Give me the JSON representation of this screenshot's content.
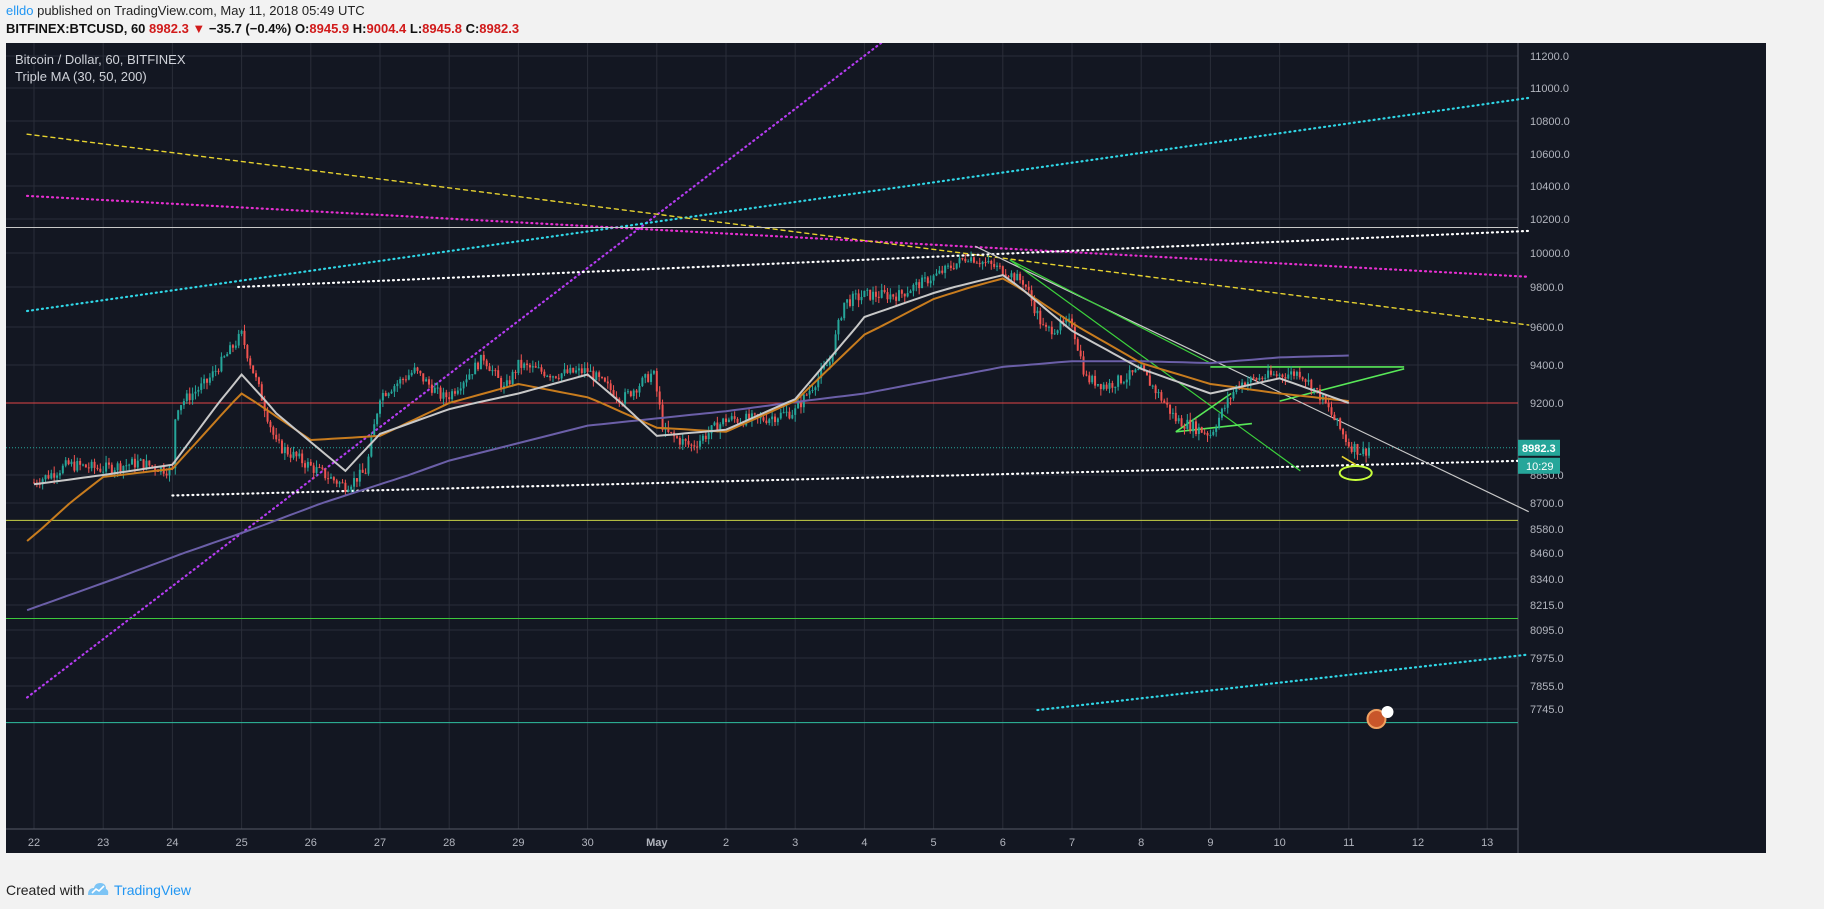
{
  "header": {
    "author": "elldo",
    "published_text": "published on TradingView.com, May 11, 2018 05:49 UTC",
    "symbol": "BITFINEX:BTCUSD, 60",
    "last": "8982.3",
    "arrow": "▼",
    "change": "−35.7 (−0.4%)",
    "o_label": "O:",
    "o_value": "8945.9",
    "h_label": "H:",
    "h_value": "9004.4",
    "l_label": "L:",
    "l_value": "8945.8",
    "c_label": "C:",
    "c_value": "8982.3"
  },
  "legend": {
    "title": "Bitcoin / Dollar, 60, BITFINEX",
    "indicator": "Triple MA (30, 50, 200)"
  },
  "footer": {
    "created_with": "Created with",
    "brand": "TradingView"
  },
  "colors": {
    "background": "#131722",
    "grid": "#2a2e39",
    "up": "#26a69a",
    "down": "#ef5350",
    "axis_text": "#b2b5be",
    "ma30": "#c8c8c8",
    "ma50": "#c87c1e",
    "ma200": "#6b5fa8"
  },
  "chart_data": {
    "type": "candlestick",
    "title": "Bitcoin / Dollar, 60, BITFINEX",
    "x_ticks": [
      "22",
      "23",
      "24",
      "25",
      "26",
      "27",
      "28",
      "29",
      "30",
      "May",
      "2",
      "3",
      "4",
      "5",
      "6",
      "7",
      "8",
      "9",
      "10",
      "11",
      "12",
      "13"
    ],
    "y_ticks": [
      "11200.0",
      "11000.0",
      "10800.0",
      "10600.0",
      "10400.0",
      "10200.0",
      "10000.0",
      "9800.0",
      "9600.0",
      "9400.0",
      "9200.0",
      "8982.3",
      "8850.0",
      "8700.0",
      "8580.0",
      "8460.0",
      "8340.0",
      "8215.0",
      "8095.0",
      "7975.0",
      "7855.0",
      "7745.0"
    ],
    "y_tick_values": [
      11200,
      11000,
      10800,
      10600,
      10400,
      10200,
      10000,
      9800,
      9600,
      9400,
      9200,
      8982.3,
      8850,
      8700,
      8580,
      8460,
      8340,
      8215,
      8095,
      7975,
      7855,
      7745
    ],
    "price_label": "8982.3",
    "countdown_label": "10:29",
    "last_price": 8982.3,
    "series_anchors": {
      "description_points_day_index_price": true,
      "close": [
        [
          0,
          8810
        ],
        [
          0.5,
          8900
        ],
        [
          1,
          8880
        ],
        [
          1.5,
          8910
        ],
        [
          2,
          8870
        ],
        [
          2.05,
          9180
        ],
        [
          2.5,
          9310
        ],
        [
          3,
          9560
        ],
        [
          3.1,
          9440
        ],
        [
          3.5,
          9000
        ],
        [
          4,
          8890
        ],
        [
          4.5,
          8790
        ],
        [
          4.8,
          8870
        ],
        [
          5,
          9240
        ],
        [
          5.5,
          9370
        ],
        [
          5.9,
          9230
        ],
        [
          6,
          9240
        ],
        [
          6.5,
          9440
        ],
        [
          6.8,
          9270
        ],
        [
          7,
          9400
        ],
        [
          7.5,
          9350
        ],
        [
          8,
          9370
        ],
        [
          8.5,
          9220
        ],
        [
          8.95,
          9360
        ],
        [
          9.1,
          9060
        ],
        [
          9.5,
          8990
        ],
        [
          10,
          9120
        ],
        [
          10.5,
          9120
        ],
        [
          11,
          9160
        ],
        [
          11.5,
          9420
        ],
        [
          11.7,
          9720
        ],
        [
          12,
          9760
        ],
        [
          12.5,
          9760
        ],
        [
          13,
          9860
        ],
        [
          13.5,
          9980
        ],
        [
          14,
          9900
        ],
        [
          14.3,
          9830
        ],
        [
          14.6,
          9580
        ],
        [
          15,
          9620
        ],
        [
          15.2,
          9330
        ],
        [
          15.5,
          9290
        ],
        [
          16,
          9370
        ],
        [
          16.5,
          9120
        ],
        [
          17,
          9050
        ],
        [
          17.4,
          9300
        ],
        [
          17.8,
          9340
        ],
        [
          18.3,
          9360
        ],
        [
          18.6,
          9230
        ],
        [
          19,
          9000
        ],
        [
          19.2,
          8960
        ],
        [
          19.3,
          8982.3
        ]
      ],
      "ma30": [
        [
          0,
          8800
        ],
        [
          1,
          8850
        ],
        [
          2,
          8900
        ],
        [
          3,
          9350
        ],
        [
          3.5,
          9150
        ],
        [
          4.5,
          8870
        ],
        [
          5,
          9050
        ],
        [
          6,
          9170
        ],
        [
          7,
          9250
        ],
        [
          8,
          9350
        ],
        [
          9,
          9040
        ],
        [
          10,
          9070
        ],
        [
          11,
          9220
        ],
        [
          12,
          9650
        ],
        [
          13,
          9770
        ],
        [
          14,
          9870
        ],
        [
          15,
          9580
        ],
        [
          16,
          9380
        ],
        [
          17,
          9250
        ],
        [
          18,
          9330
        ],
        [
          19,
          9200
        ]
      ],
      "ma50": [
        [
          -0.1,
          8520
        ],
        [
          1,
          8840
        ],
        [
          2,
          8880
        ],
        [
          3,
          9250
        ],
        [
          4,
          9020
        ],
        [
          5,
          9040
        ],
        [
          6,
          9200
        ],
        [
          7,
          9300
        ],
        [
          8,
          9230
        ],
        [
          9,
          9080
        ],
        [
          10,
          9060
        ],
        [
          11,
          9210
        ],
        [
          12,
          9560
        ],
        [
          13,
          9740
        ],
        [
          14,
          9850
        ],
        [
          15,
          9620
        ],
        [
          16,
          9410
        ],
        [
          17,
          9300
        ],
        [
          18,
          9250
        ],
        [
          19,
          9210
        ]
      ],
      "ma200": [
        [
          -0.1,
          8190
        ],
        [
          2,
          8440
        ],
        [
          4,
          8680
        ],
        [
          6,
          8920
        ],
        [
          8,
          9090
        ],
        [
          10,
          9160
        ],
        [
          12,
          9250
        ],
        [
          14,
          9390
        ],
        [
          15,
          9420
        ],
        [
          16,
          9420
        ],
        [
          17,
          9410
        ],
        [
          18,
          9440
        ],
        [
          19,
          9450
        ]
      ]
    }
  }
}
